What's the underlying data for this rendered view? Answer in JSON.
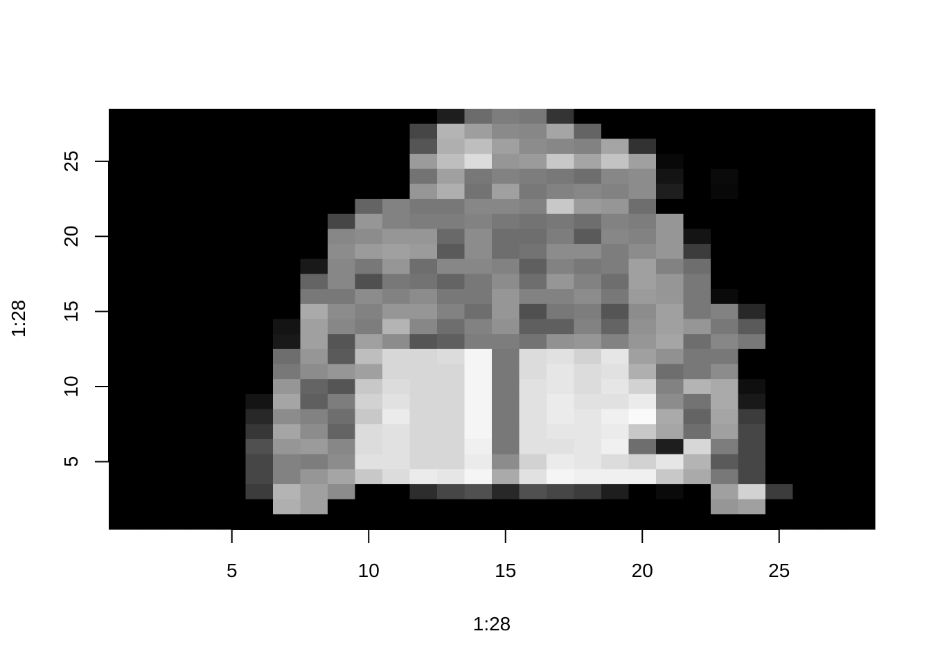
{
  "chart_data": {
    "type": "heatmap",
    "title": "",
    "xlabel": "1:28",
    "ylabel": "1:28",
    "xlim": [
      0.5,
      28.5
    ],
    "ylim": [
      0.5,
      28.5
    ],
    "x_ticks": [
      5,
      10,
      15,
      20,
      25
    ],
    "y_ticks": [
      5,
      10,
      15,
      20,
      25
    ],
    "x_tick_labels": [
      "5",
      "10",
      "15",
      "20",
      "25"
    ],
    "y_tick_labels": [
      "5",
      "10",
      "15",
      "20",
      "25"
    ],
    "colormap": "grayscale",
    "value_range": [
      0,
      255
    ],
    "grid": false,
    "legend": "none",
    "matrix_row_order": "y=28 (top) to y=1 (bottom), columns x=1..28",
    "z": [
      [
        0,
        0,
        0,
        0,
        0,
        0,
        0,
        0,
        0,
        0,
        0,
        0,
        30,
        108,
        125,
        120,
        52,
        0,
        0,
        0,
        0,
        0,
        0,
        0,
        0,
        0,
        0,
        0
      ],
      [
        0,
        0,
        0,
        0,
        0,
        0,
        0,
        0,
        0,
        0,
        0,
        70,
        180,
        158,
        138,
        135,
        165,
        100,
        0,
        0,
        0,
        0,
        0,
        0,
        0,
        0,
        0,
        0
      ],
      [
        0,
        0,
        0,
        0,
        0,
        0,
        0,
        0,
        0,
        0,
        0,
        85,
        175,
        190,
        160,
        140,
        135,
        130,
        165,
        50,
        0,
        0,
        0,
        0,
        0,
        0,
        0,
        0
      ],
      [
        0,
        0,
        0,
        0,
        0,
        0,
        0,
        0,
        0,
        0,
        0,
        155,
        190,
        220,
        150,
        155,
        200,
        165,
        195,
        160,
        8,
        0,
        0,
        0,
        0,
        0,
        0,
        0
      ],
      [
        0,
        0,
        0,
        0,
        0,
        0,
        0,
        0,
        0,
        0,
        0,
        115,
        160,
        120,
        130,
        125,
        120,
        110,
        135,
        140,
        20,
        0,
        10,
        0,
        0,
        0,
        0,
        0
      ],
      [
        0,
        0,
        0,
        0,
        0,
        0,
        0,
        0,
        0,
        0,
        0,
        150,
        175,
        115,
        160,
        120,
        130,
        135,
        130,
        140,
        30,
        0,
        8,
        0,
        0,
        0,
        0,
        0
      ],
      [
        0,
        0,
        0,
        0,
        0,
        0,
        0,
        0,
        0,
        100,
        130,
        120,
        120,
        135,
        135,
        130,
        200,
        155,
        150,
        110,
        0,
        0,
        0,
        0,
        0,
        0,
        0,
        0
      ],
      [
        0,
        0,
        0,
        0,
        0,
        0,
        0,
        0,
        70,
        150,
        130,
        125,
        125,
        130,
        120,
        115,
        120,
        110,
        130,
        125,
        150,
        0,
        0,
        0,
        0,
        0,
        0,
        0
      ],
      [
        0,
        0,
        0,
        0,
        0,
        0,
        0,
        0,
        135,
        140,
        150,
        150,
        105,
        140,
        110,
        110,
        125,
        90,
        135,
        130,
        150,
        20,
        0,
        0,
        0,
        0,
        0,
        0
      ],
      [
        0,
        0,
        0,
        0,
        0,
        0,
        0,
        0,
        140,
        155,
        160,
        155,
        90,
        140,
        110,
        115,
        140,
        140,
        125,
        140,
        150,
        60,
        0,
        0,
        0,
        0,
        0,
        0
      ],
      [
        0,
        0,
        0,
        0,
        0,
        0,
        0,
        25,
        135,
        120,
        150,
        110,
        135,
        135,
        130,
        95,
        130,
        120,
        125,
        160,
        130,
        110,
        0,
        0,
        0,
        0,
        0,
        0
      ],
      [
        0,
        0,
        0,
        0,
        0,
        0,
        0,
        100,
        135,
        80,
        120,
        115,
        100,
        120,
        140,
        110,
        150,
        130,
        110,
        160,
        150,
        120,
        0,
        0,
        0,
        0,
        0,
        0
      ],
      [
        0,
        0,
        0,
        0,
        0,
        0,
        0,
        120,
        120,
        140,
        130,
        140,
        120,
        120,
        150,
        130,
        130,
        140,
        120,
        155,
        150,
        120,
        10,
        0,
        0,
        0,
        0,
        0
      ],
      [
        0,
        0,
        0,
        0,
        0,
        0,
        0,
        170,
        140,
        130,
        150,
        150,
        130,
        110,
        150,
        80,
        120,
        125,
        85,
        140,
        160,
        120,
        130,
        40,
        0,
        0,
        0,
        0
      ],
      [
        0,
        0,
        0,
        0,
        0,
        0,
        20,
        160,
        135,
        125,
        180,
        135,
        110,
        130,
        145,
        95,
        95,
        130,
        100,
        145,
        160,
        150,
        120,
        90,
        0,
        0,
        0,
        0
      ],
      [
        0,
        0,
        0,
        0,
        0,
        0,
        25,
        160,
        85,
        160,
        140,
        85,
        95,
        125,
        125,
        115,
        145,
        150,
        130,
        150,
        165,
        110,
        135,
        120,
        0,
        0,
        0,
        0
      ],
      [
        0,
        0,
        0,
        0,
        0,
        0,
        110,
        150,
        90,
        190,
        215,
        215,
        220,
        245,
        120,
        220,
        225,
        210,
        230,
        160,
        145,
        120,
        120,
        0,
        0,
        0,
        0,
        0
      ],
      [
        0,
        0,
        0,
        0,
        0,
        0,
        120,
        140,
        150,
        160,
        215,
        215,
        215,
        245,
        120,
        220,
        230,
        220,
        225,
        175,
        110,
        120,
        140,
        0,
        0,
        0,
        0,
        0
      ],
      [
        0,
        0,
        0,
        0,
        0,
        0,
        150,
        100,
        85,
        200,
        220,
        215,
        215,
        245,
        120,
        225,
        230,
        220,
        230,
        210,
        130,
        180,
        170,
        15,
        0,
        0,
        0,
        0
      ],
      [
        0,
        0,
        0,
        0,
        0,
        20,
        165,
        95,
        125,
        210,
        225,
        215,
        215,
        245,
        120,
        225,
        235,
        225,
        225,
        235,
        140,
        115,
        170,
        25,
        0,
        0,
        0,
        0
      ],
      [
        0,
        0,
        0,
        0,
        0,
        40,
        140,
        130,
        110,
        200,
        235,
        215,
        215,
        245,
        120,
        225,
        235,
        230,
        240,
        250,
        170,
        100,
        165,
        60,
        0,
        0,
        0,
        0
      ],
      [
        0,
        0,
        0,
        0,
        0,
        55,
        165,
        140,
        100,
        220,
        225,
        215,
        215,
        245,
        120,
        225,
        230,
        230,
        235,
        200,
        165,
        110,
        160,
        70,
        0,
        0,
        0,
        0
      ],
      [
        0,
        0,
        0,
        0,
        0,
        80,
        150,
        155,
        135,
        220,
        225,
        215,
        215,
        240,
        120,
        225,
        225,
        230,
        240,
        110,
        30,
        215,
        125,
        70,
        0,
        0,
        0,
        0
      ],
      [
        0,
        0,
        0,
        0,
        0,
        70,
        130,
        125,
        140,
        225,
        225,
        215,
        215,
        235,
        140,
        210,
        235,
        230,
        220,
        210,
        230,
        180,
        90,
        70,
        0,
        0,
        0,
        0
      ],
      [
        0,
        0,
        0,
        0,
        0,
        70,
        130,
        150,
        165,
        200,
        220,
        235,
        230,
        245,
        170,
        225,
        245,
        240,
        240,
        240,
        200,
        170,
        120,
        70,
        0,
        0,
        0,
        0
      ],
      [
        0,
        0,
        0,
        0,
        0,
        60,
        180,
        160,
        140,
        0,
        0,
        45,
        70,
        80,
        40,
        80,
        70,
        60,
        30,
        0,
        10,
        0,
        160,
        210,
        60,
        0,
        0,
        0
      ],
      [
        0,
        0,
        0,
        0,
        0,
        0,
        175,
        160,
        0,
        0,
        0,
        0,
        0,
        0,
        0,
        0,
        0,
        0,
        0,
        0,
        0,
        0,
        150,
        160,
        0,
        0,
        0,
        0
      ],
      [
        0,
        0,
        0,
        0,
        0,
        0,
        0,
        0,
        0,
        0,
        0,
        0,
        0,
        0,
        0,
        0,
        0,
        0,
        0,
        0,
        0,
        0,
        0,
        0,
        0,
        0,
        0,
        0
      ]
    ]
  }
}
